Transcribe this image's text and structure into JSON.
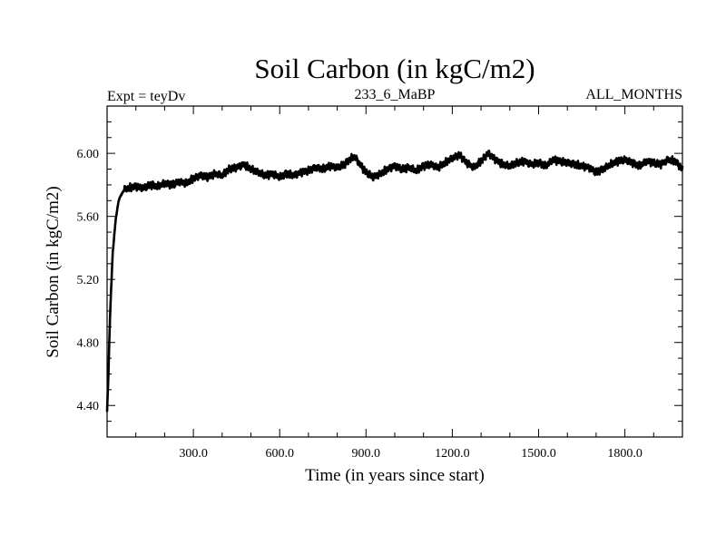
{
  "chart_data": {
    "type": "line",
    "title": "Soil Carbon (in kgC/m2)",
    "subtitle_left": "Expt = teyDv",
    "subtitle_center": "233_6_MaBP",
    "subtitle_right": "ALL_MONTHS",
    "xlabel": "Time (in years since start)",
    "ylabel": "Soil Carbon (in kgC/m2)",
    "xlim": [
      0,
      2000
    ],
    "ylim": [
      4.2,
      6.3
    ],
    "xticks": [
      300,
      600,
      900,
      1200,
      1500,
      1800
    ],
    "xtick_labels": [
      "300.0",
      "600.0",
      "900.0",
      "1200.0",
      "1500.0",
      "1800.0"
    ],
    "yticks": [
      4.4,
      4.8,
      5.2,
      5.6,
      6.0
    ],
    "ytick_labels": [
      "4.40",
      "4.80",
      "5.20",
      "5.60",
      "6.00"
    ],
    "grid": false,
    "line_color": "#000000",
    "series": [
      {
        "name": "Soil Carbon",
        "x": [
          0,
          5,
          10,
          15,
          20,
          30,
          40,
          50,
          60,
          75,
          100,
          125,
          150,
          175,
          200,
          225,
          250,
          275,
          300,
          325,
          350,
          375,
          400,
          425,
          450,
          475,
          500,
          525,
          550,
          575,
          600,
          625,
          650,
          675,
          700,
          725,
          750,
          775,
          800,
          825,
          850,
          860,
          875,
          900,
          925,
          950,
          975,
          1000,
          1025,
          1050,
          1075,
          1100,
          1125,
          1150,
          1175,
          1200,
          1225,
          1250,
          1275,
          1300,
          1325,
          1350,
          1375,
          1400,
          1425,
          1450,
          1475,
          1500,
          1525,
          1550,
          1575,
          1600,
          1625,
          1650,
          1675,
          1700,
          1725,
          1750,
          1775,
          1800,
          1825,
          1850,
          1875,
          1900,
          1925,
          1950,
          1975,
          2000
        ],
        "y": [
          4.36,
          4.62,
          4.95,
          5.18,
          5.38,
          5.58,
          5.7,
          5.74,
          5.77,
          5.78,
          5.79,
          5.78,
          5.8,
          5.79,
          5.81,
          5.8,
          5.82,
          5.81,
          5.84,
          5.86,
          5.85,
          5.87,
          5.86,
          5.9,
          5.91,
          5.93,
          5.9,
          5.88,
          5.86,
          5.87,
          5.85,
          5.87,
          5.86,
          5.88,
          5.89,
          5.91,
          5.9,
          5.92,
          5.91,
          5.93,
          5.97,
          5.98,
          5.94,
          5.88,
          5.85,
          5.87,
          5.9,
          5.92,
          5.9,
          5.91,
          5.89,
          5.92,
          5.93,
          5.91,
          5.94,
          5.97,
          5.99,
          5.94,
          5.91,
          5.95,
          6.0,
          5.96,
          5.93,
          5.92,
          5.94,
          5.95,
          5.93,
          5.94,
          5.92,
          5.96,
          5.95,
          5.94,
          5.93,
          5.92,
          5.91,
          5.88,
          5.9,
          5.93,
          5.95,
          5.96,
          5.94,
          5.92,
          5.95,
          5.94,
          5.93,
          5.96,
          5.95,
          5.9
        ]
      }
    ]
  }
}
